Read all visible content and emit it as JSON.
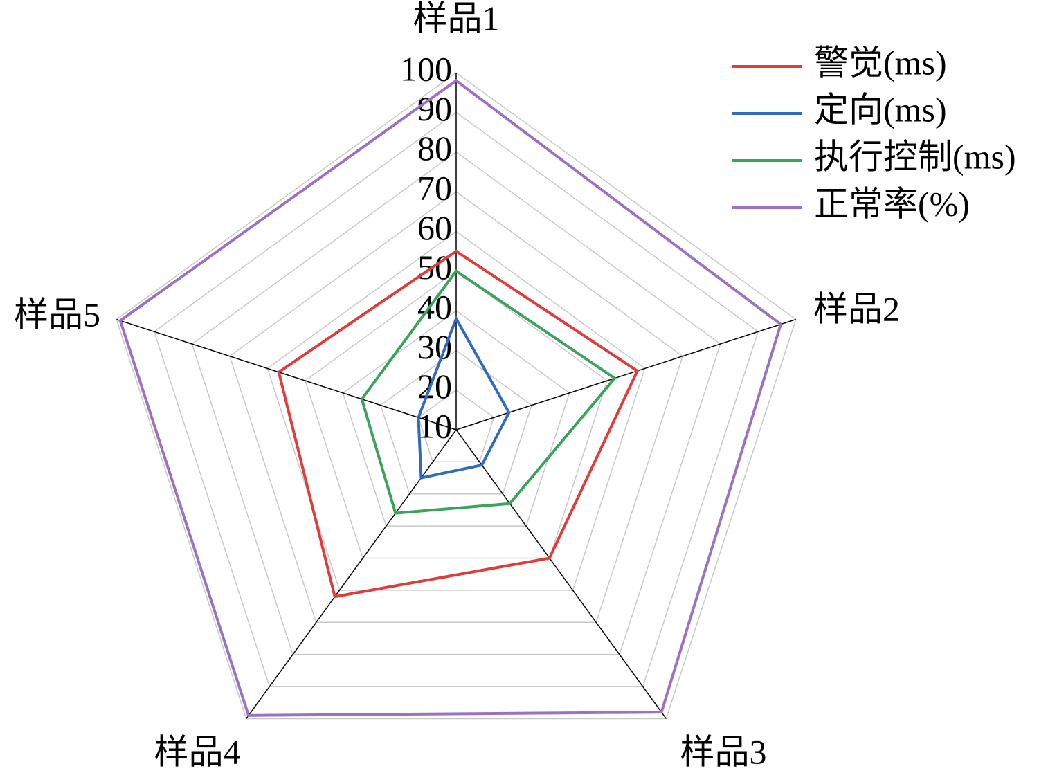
{
  "chart_data": {
    "type": "radar",
    "categories": [
      "样品1",
      "样品2",
      "样品3",
      "样品4",
      "样品5"
    ],
    "series": [
      {
        "name": "警觉(ms)",
        "color": "#e03c3c",
        "values": [
          55,
          58,
          50,
          62,
          57
        ]
      },
      {
        "name": "定向(ms)",
        "color": "#2f6bbf",
        "values": [
          38,
          24,
          21,
          25,
          20
        ]
      },
      {
        "name": "执行控制(ms)",
        "color": "#3aa35c",
        "values": [
          50,
          52,
          33,
          36,
          35
        ]
      },
      {
        "name": "正常率(%)",
        "color": "#9b72c2",
        "values": [
          98,
          96,
          98,
          99,
          99
        ]
      }
    ],
    "rlim": [
      10,
      100
    ],
    "rticks": [
      10,
      20,
      30,
      40,
      50,
      60,
      70,
      80,
      90,
      100
    ],
    "grid": true,
    "legend": "upper-right"
  }
}
